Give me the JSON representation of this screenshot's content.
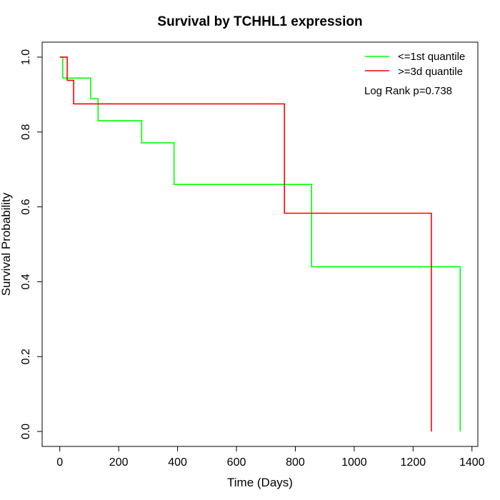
{
  "chart_data": {
    "type": "line",
    "subtype": "kaplan-meier step",
    "title": "Survival by TCHHL1 expression",
    "xlabel": "Time (Days)",
    "ylabel": "Survival Probability",
    "xlim": [
      -60,
      1420
    ],
    "ylim": [
      -0.04,
      1.04
    ],
    "xticks": [
      0,
      200,
      400,
      600,
      800,
      1000,
      1200,
      1400
    ],
    "yticks": [
      0.0,
      0.2,
      0.4,
      0.6,
      0.8,
      1.0
    ],
    "xtick_labels": [
      "0",
      "200",
      "400",
      "600",
      "800",
      "1000",
      "1200",
      "1400"
    ],
    "ytick_labels": [
      "0.0",
      "0.2",
      "0.4",
      "0.6",
      "0.8",
      "1.0"
    ],
    "grid": false,
    "legend_position": "top-right",
    "annotation": "Log Rank p=0.738",
    "series": [
      {
        "name": "<=1st quantile",
        "color": "#00ff00",
        "x": [
          0,
          10,
          105,
          130,
          278,
          388,
          855,
          1360,
          1360
        ],
        "y": [
          1.0,
          0.944,
          0.889,
          0.83,
          0.771,
          0.66,
          0.44,
          0.44,
          0.0
        ]
      },
      {
        "name": ">=3d quantile",
        "color": "#ff0000",
        "x": [
          0,
          25,
          47,
          763,
          1262,
          1262
        ],
        "y": [
          1.0,
          0.938,
          0.875,
          0.583,
          0.583,
          0.0
        ]
      }
    ]
  }
}
